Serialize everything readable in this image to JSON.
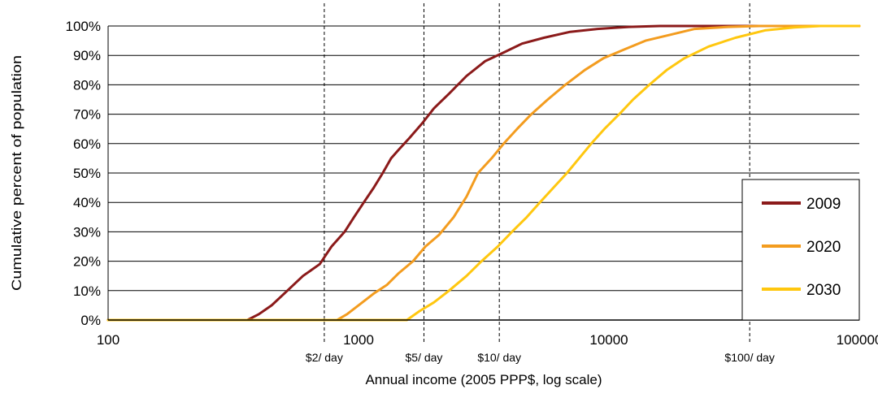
{
  "chart_data": {
    "type": "line",
    "xlabel": "Annual income (2005 PPP$, log scale)",
    "ylabel": "Cumulative percent of population",
    "x_scale": "log",
    "xlim": [
      100,
      100000
    ],
    "ylim": [
      0,
      100
    ],
    "x_ticks": [
      100,
      1000,
      10000,
      100000
    ],
    "x_tick_labels": [
      "100",
      "1000",
      "10000",
      "100000"
    ],
    "y_ticks": [
      0,
      10,
      20,
      30,
      40,
      50,
      60,
      70,
      80,
      90,
      100
    ],
    "y_tick_labels": [
      "0%",
      "10%",
      "20%",
      "30%",
      "40%",
      "50%",
      "60%",
      "70%",
      "80%",
      "90%",
      "100%"
    ],
    "grid": "horizontal",
    "legend_position": "right",
    "reference_lines": [
      {
        "x": 730,
        "label": "$2/ day"
      },
      {
        "x": 1825,
        "label": "$5/ day"
      },
      {
        "x": 3650,
        "label": "$10/ day"
      },
      {
        "x": 36500,
        "label": "$100/ day"
      }
    ],
    "series": [
      {
        "name": "2009",
        "color": "#8B1A1A",
        "points": [
          [
            100,
            0
          ],
          [
            360,
            0
          ],
          [
            400,
            2
          ],
          [
            450,
            5
          ],
          [
            520,
            10
          ],
          [
            600,
            15
          ],
          [
            700,
            19
          ],
          [
            780,
            25
          ],
          [
            880,
            30
          ],
          [
            960,
            35
          ],
          [
            1050,
            40
          ],
          [
            1150,
            45
          ],
          [
            1250,
            50
          ],
          [
            1350,
            55
          ],
          [
            1450,
            58
          ],
          [
            1600,
            62
          ],
          [
            1800,
            67
          ],
          [
            2000,
            72
          ],
          [
            2300,
            77
          ],
          [
            2700,
            83
          ],
          [
            3200,
            88
          ],
          [
            3800,
            91
          ],
          [
            4500,
            94
          ],
          [
            5500,
            96
          ],
          [
            7000,
            98
          ],
          [
            9000,
            99
          ],
          [
            12000,
            99.7
          ],
          [
            16000,
            100
          ],
          [
            100000,
            100
          ]
        ]
      },
      {
        "name": "2020",
        "color": "#F39C1F",
        "points": [
          [
            100,
            0
          ],
          [
            820,
            0
          ],
          [
            900,
            2
          ],
          [
            1000,
            5
          ],
          [
            1150,
            9
          ],
          [
            1300,
            12
          ],
          [
            1450,
            16
          ],
          [
            1650,
            20
          ],
          [
            1850,
            25
          ],
          [
            2100,
            29
          ],
          [
            2400,
            35
          ],
          [
            2700,
            42
          ],
          [
            3000,
            50
          ],
          [
            3400,
            55
          ],
          [
            3800,
            60
          ],
          [
            4300,
            65
          ],
          [
            4900,
            70
          ],
          [
            5700,
            75
          ],
          [
            6700,
            80
          ],
          [
            8000,
            85
          ],
          [
            9500,
            89
          ],
          [
            11500,
            92
          ],
          [
            14000,
            95
          ],
          [
            17500,
            97
          ],
          [
            22000,
            99
          ],
          [
            30000,
            99.7
          ],
          [
            40000,
            100
          ],
          [
            100000,
            100
          ]
        ]
      },
      {
        "name": "2030",
        "color": "#FFC70F",
        "points": [
          [
            100,
            0
          ],
          [
            1560,
            0
          ],
          [
            1750,
            3
          ],
          [
            2000,
            6
          ],
          [
            2300,
            10
          ],
          [
            2700,
            15
          ],
          [
            3100,
            20
          ],
          [
            3600,
            25
          ],
          [
            4100,
            30
          ],
          [
            4700,
            35
          ],
          [
            5300,
            40
          ],
          [
            6000,
            45
          ],
          [
            6800,
            50
          ],
          [
            7600,
            55
          ],
          [
            8500,
            60
          ],
          [
            9600,
            65
          ],
          [
            11000,
            70
          ],
          [
            12500,
            75
          ],
          [
            14500,
            80
          ],
          [
            17000,
            85
          ],
          [
            20000,
            89
          ],
          [
            25000,
            93
          ],
          [
            32000,
            96
          ],
          [
            42000,
            98.5
          ],
          [
            55000,
            99.5
          ],
          [
            70000,
            100
          ],
          [
            100000,
            100
          ]
        ]
      }
    ]
  }
}
